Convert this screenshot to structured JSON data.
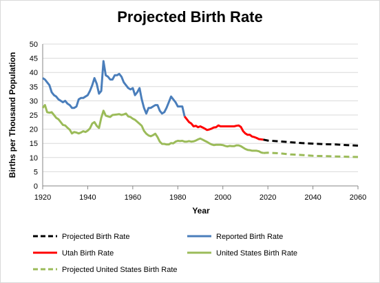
{
  "chart_data": {
    "type": "line",
    "title": "Projected Birth Rate",
    "xlabel": "Year",
    "ylabel": "Births per Thousand Population",
    "xlim": [
      1920,
      2060
    ],
    "ylim": [
      0,
      50
    ],
    "xticks": [
      "1920",
      "1940",
      "1960",
      "1980",
      "2000",
      "2020",
      "2040",
      "2060"
    ],
    "yticks": [
      "0",
      "5",
      "10",
      "15",
      "20",
      "25",
      "30",
      "35",
      "40",
      "45",
      "50"
    ],
    "grid": "horizontal",
    "legend_position": "bottom",
    "series": [
      {
        "name": "Projected Birth Rate",
        "color": "#000000",
        "style": "dashed",
        "x": [
          2018,
          2020,
          2025,
          2030,
          2035,
          2040,
          2045,
          2050,
          2055,
          2060
        ],
        "y": [
          16.3,
          16.0,
          15.7,
          15.4,
          15.1,
          14.9,
          14.7,
          14.6,
          14.4,
          14.2
        ]
      },
      {
        "name": "Reported Birth Rate",
        "color": "#4a7ebb",
        "style": "solid",
        "x": [
          1920,
          1921,
          1922,
          1923,
          1924,
          1925,
          1926,
          1927,
          1928,
          1929,
          1930,
          1931,
          1932,
          1933,
          1934,
          1935,
          1936,
          1937,
          1938,
          1939,
          1940,
          1941,
          1942,
          1943,
          1944,
          1945,
          1946,
          1947,
          1948,
          1949,
          1950,
          1951,
          1952,
          1953,
          1954,
          1955,
          1956,
          1957,
          1958,
          1959,
          1960,
          1961,
          1962,
          1963,
          1964,
          1965,
          1966,
          1967,
          1968,
          1969,
          1970,
          1971,
          1972,
          1973,
          1974,
          1975,
          1976,
          1977,
          1978,
          1979,
          1980,
          1981,
          1982,
          1983
        ],
        "y": [
          38,
          37.5,
          36.5,
          35.5,
          33,
          32,
          31.5,
          30.5,
          30,
          29.5,
          30,
          29,
          28.5,
          27.5,
          27.5,
          28,
          30.5,
          31,
          31,
          31.5,
          32,
          33.5,
          35.5,
          38,
          36,
          32.5,
          33.5,
          44,
          39,
          38.5,
          37.5,
          37.5,
          39,
          39,
          39.5,
          38.5,
          36.5,
          35.5,
          34.5,
          34,
          34.5,
          32,
          33,
          34.5,
          30.5,
          27.5,
          25.5,
          27.5,
          27.5,
          28,
          28.5,
          28.5,
          26.5,
          25.5,
          26,
          27.5,
          29.5,
          31.5,
          30.5,
          29.5,
          28,
          28,
          28,
          24.5
        ]
      },
      {
        "name": "Utah Birth Rate",
        "color": "#ff0000",
        "style": "solid",
        "x": [
          1983,
          1984,
          1985,
          1986,
          1987,
          1988,
          1989,
          1990,
          1991,
          1992,
          1993,
          1994,
          1995,
          1996,
          1997,
          1998,
          1999,
          2000,
          2001,
          2002,
          2003,
          2004,
          2005,
          2006,
          2007,
          2008,
          2009,
          2010,
          2011,
          2012,
          2013,
          2014,
          2015,
          2016,
          2017,
          2018
        ],
        "y": [
          24.5,
          23.5,
          22.5,
          22,
          21,
          21.2,
          20.7,
          21,
          20.6,
          20.2,
          19.7,
          19.9,
          20.2,
          20.6,
          20.7,
          21.3,
          21,
          21,
          21,
          21,
          21,
          21,
          21,
          21.2,
          21.3,
          20.8,
          19.3,
          18.5,
          18,
          18,
          17.4,
          17.2,
          16.9,
          16.5,
          16.4,
          16.3
        ]
      },
      {
        "name": "United States Birth Rate",
        "color": "#9bbb59",
        "style": "solid",
        "x": [
          1920,
          1921,
          1922,
          1923,
          1924,
          1925,
          1926,
          1927,
          1928,
          1929,
          1930,
          1931,
          1932,
          1933,
          1934,
          1935,
          1936,
          1937,
          1938,
          1939,
          1940,
          1941,
          1942,
          1943,
          1944,
          1945,
          1946,
          1947,
          1948,
          1949,
          1950,
          1951,
          1952,
          1953,
          1954,
          1955,
          1956,
          1957,
          1958,
          1959,
          1960,
          1961,
          1962,
          1963,
          1964,
          1965,
          1966,
          1967,
          1968,
          1969,
          1970,
          1971,
          1972,
          1973,
          1974,
          1975,
          1976,
          1977,
          1978,
          1979,
          1980,
          1981,
          1982,
          1983,
          1984,
          1985,
          1986,
          1987,
          1988,
          1989,
          1990,
          1991,
          1992,
          1993,
          1994,
          1995,
          1996,
          1997,
          1998,
          1999,
          2000,
          2001,
          2002,
          2003,
          2004,
          2005,
          2006,
          2007,
          2008,
          2009,
          2010,
          2011,
          2012,
          2013,
          2014,
          2015,
          2016,
          2017,
          2018
        ],
        "y": [
          27.5,
          28.5,
          26,
          25.8,
          26,
          25,
          24,
          23.5,
          22.5,
          21.5,
          21.3,
          20.5,
          19.8,
          18.5,
          19,
          18.8,
          18.5,
          18.8,
          19.3,
          19,
          19.5,
          20.3,
          22,
          22.5,
          21.2,
          20.4,
          24,
          26.5,
          24.8,
          24.5,
          24.3,
          25,
          25.1,
          25.2,
          25.3,
          25,
          25.2,
          25.5,
          24.5,
          24.3,
          23.7,
          23.3,
          22.6,
          21.9,
          21.2,
          19.4,
          18.4,
          17.8,
          17.5,
          17.9,
          18.4,
          17.2,
          15.6,
          14.8,
          14.8,
          14.6,
          14.6,
          15.1,
          15,
          15.6,
          15.9,
          15.8,
          15.9,
          15.6,
          15.6,
          15.8,
          15.6,
          15.7,
          16,
          16.4,
          16.7,
          16.3,
          15.9,
          15.5,
          15,
          14.6,
          14.4,
          14.5,
          14.5,
          14.5,
          14.4,
          14.1,
          13.9,
          14.1,
          14,
          14,
          14.3,
          14.3,
          14,
          13.5,
          13,
          12.7,
          12.6,
          12.4,
          12.4,
          12.4,
          12.2,
          11.8,
          11.6
        ]
      },
      {
        "name": "Projected United States Birth Rate",
        "color": "#9bbb59",
        "style": "dashed",
        "x": [
          2018,
          2020,
          2025,
          2030,
          2035,
          2040,
          2045,
          2050,
          2055,
          2060
        ],
        "y": [
          11.6,
          11.7,
          11.5,
          11.1,
          10.9,
          10.6,
          10.5,
          10.4,
          10.3,
          10.2
        ]
      }
    ]
  }
}
